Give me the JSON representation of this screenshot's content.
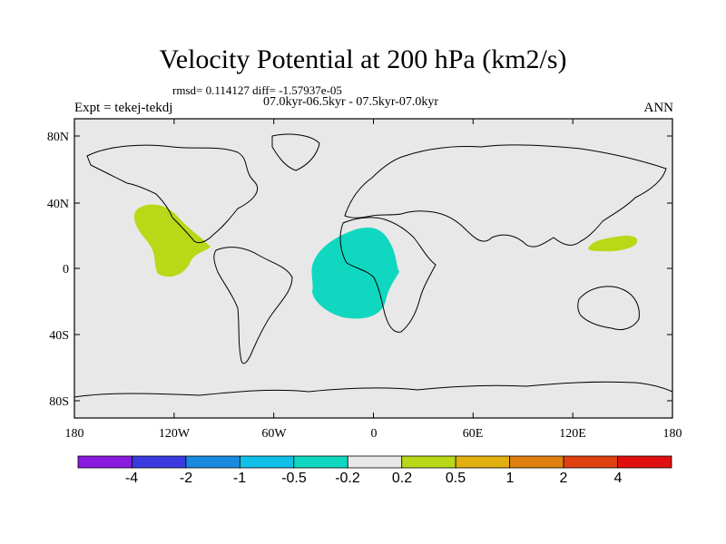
{
  "title": "Velocity Potential at 200 hPa (km2/s)",
  "stats": {
    "rmsd_text": "rmsd= 0.114127 diff= -1.57937e-05",
    "period_text": "07.0kyr-06.5kyr - 07.5kyr-07.0kyr"
  },
  "left_label": "Expt = tekej-tekdj",
  "right_label": "ANN",
  "axes": {
    "lon_ticks": [
      "180",
      "120W",
      "60W",
      "0",
      "60E",
      "120E",
      "180"
    ],
    "lat_ticks": [
      "80N",
      "40N",
      "0",
      "40S",
      "80S"
    ]
  },
  "colorbar": {
    "colors": [
      "#8a1ae0",
      "#3a3ae0",
      "#1a8ae0",
      "#10c0e8",
      "#10d8c0",
      "#e8e8e8",
      "#b8d818",
      "#e0b010",
      "#e08010",
      "#e04010",
      "#e01010"
    ],
    "labels": [
      "-4",
      "-2",
      "-1",
      "-0.5",
      "-0.2",
      "0.2",
      "0.5",
      "1",
      "2",
      "4"
    ]
  },
  "anomalies": [
    {
      "name": "eastern-pacific-positive",
      "category": "0.2 to 0.5",
      "color": "#b8d818"
    },
    {
      "name": "atlantic-africa-negative",
      "category": "-0.5 to -0.2",
      "color": "#10d8c0"
    },
    {
      "name": "western-pacific-positive",
      "category": "0.2 to 0.5",
      "color": "#b8d818"
    }
  ],
  "map_background": "#e8e8e8"
}
